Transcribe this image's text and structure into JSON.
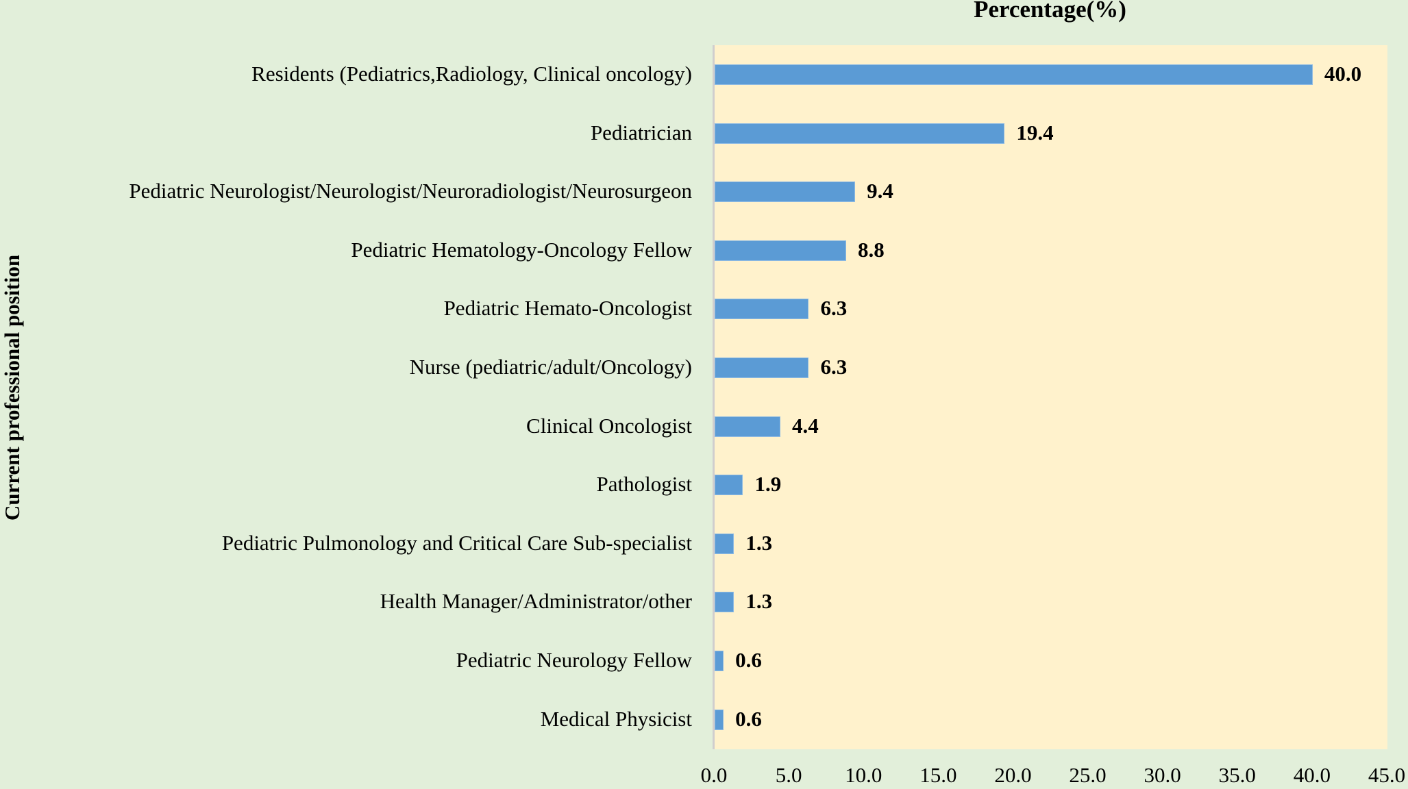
{
  "chart_data": {
    "type": "bar",
    "orientation": "horizontal",
    "title": "Percentage(%)",
    "xlabel": "Percentage(%)",
    "ylabel": "Current professional position",
    "xlim": [
      0,
      45
    ],
    "x_ticks": [
      "0.0",
      "5.0",
      "10.0",
      "15.0",
      "20.0",
      "25.0",
      "30.0",
      "35.0",
      "40.0",
      "45.0"
    ],
    "grid": false,
    "legend": null,
    "categories": [
      "Residents (Pediatrics,Radiology, Clinical oncology)",
      "Pediatrician",
      "Pediatric Neurologist/Neurologist/Neuroradiologist/Neurosurgeon",
      "Pediatric Hematology-Oncology Fellow",
      "Pediatric Hemato-Oncologist",
      "Nurse (pediatric/adult/Oncology)",
      "Clinical Oncologist",
      "Pathologist",
      "Pediatric Pulmonology and Critical Care Sub-specialist",
      "Health Manager/Administrator/other",
      "Pediatric Neurology Fellow",
      "Medical Physicist"
    ],
    "values": [
      40.0,
      19.4,
      9.4,
      8.8,
      6.3,
      6.3,
      4.4,
      1.9,
      1.3,
      1.3,
      0.6,
      0.6
    ],
    "value_labels": [
      "40.0",
      "19.4",
      "9.4",
      "8.8",
      "6.3",
      "6.3",
      "4.4",
      "1.9",
      "1.3",
      "1.3",
      "0.6",
      "0.6"
    ],
    "colors": {
      "bar": "#5b9bd5",
      "plot_background": "#fff2cc",
      "figure_background": "#e2efda"
    }
  }
}
